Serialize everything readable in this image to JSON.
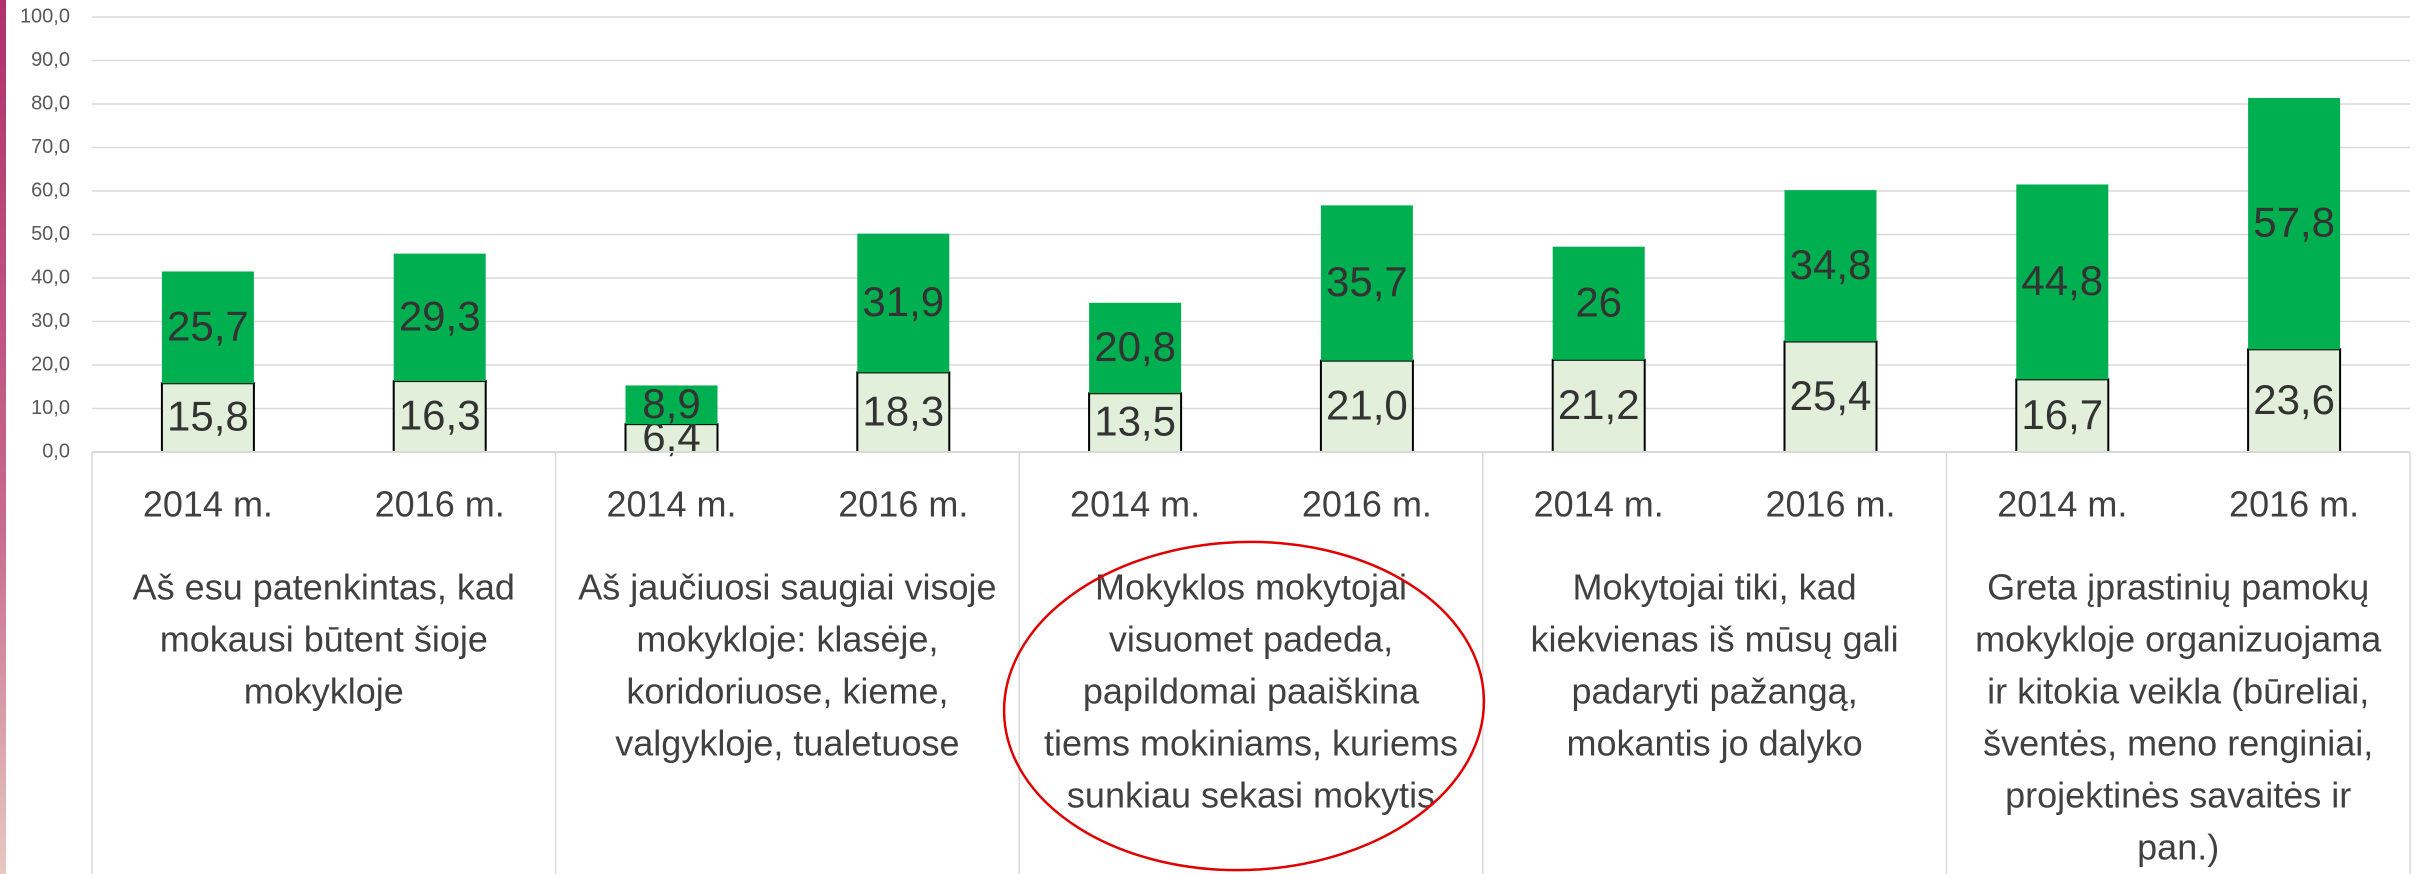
{
  "chart_data": {
    "type": "stacked_bar",
    "categories": [
      "2014 m.",
      "2016 m.",
      "2014 m.",
      "2016 m.",
      "2014 m.",
      "2016 m.",
      "2014 m.",
      "2016 m.",
      "2014 m.",
      "2016 m."
    ],
    "groups": [
      [
        "Aš esu patenkintas, kad",
        "mokausi būtent šioje",
        "mokykloje"
      ],
      [
        "Aš jaučiuosi saugiai visoje",
        "mokykloje: klasėje,",
        "koridoriuose, kieme,",
        "valgykloje, tualetuose"
      ],
      [
        "Mokyklos mokytojai",
        "visuomet padeda,",
        "papildomai paaiškina",
        "tiems mokiniams, kuriems",
        "sunkiau sekasi mokytis"
      ],
      [
        "Mokytojai tiki, kad",
        "kiekvienas iš mūsų gali",
        "padaryti pažangą,",
        "mokantis jo dalyko"
      ],
      [
        "Greta įprastinių pamokų",
        "mokykloje organizuojama",
        "ir kitokia veikla (būreliai,",
        "šventės, meno renginiai,",
        "projektinės savaitės ir",
        "pan.)"
      ]
    ],
    "series": [
      {
        "color": "#e2efda",
        "values": [
          15.8,
          16.3,
          6.4,
          18.3,
          13.5,
          21.0,
          21.2,
          25.4,
          16.7,
          23.6
        ],
        "value_labels": [
          "15,8",
          "16,3",
          "6,4",
          "18,3",
          "13,5",
          "21,0",
          "21,2",
          "25,4",
          "16,7",
          "23,6"
        ]
      },
      {
        "color": "#00b050",
        "values": [
          25.7,
          29.3,
          8.9,
          31.9,
          20.8,
          35.7,
          26,
          34.8,
          44.8,
          57.8
        ],
        "value_labels": [
          "25,7",
          "29,3",
          "8,9",
          "31,9",
          "20,8",
          "35,7",
          "26",
          "34,8",
          "44,8",
          "57,8"
        ]
      }
    ],
    "ylim": [
      0,
      100
    ],
    "yticks": [
      {
        "value": 0,
        "label": "0,0"
      },
      {
        "value": 10,
        "label": "10,0"
      },
      {
        "value": 20,
        "label": "20,0"
      },
      {
        "value": 30,
        "label": "30,0"
      },
      {
        "value": 40,
        "label": "40,0"
      },
      {
        "value": 50,
        "label": "50,0"
      },
      {
        "value": 60,
        "label": "60,0"
      },
      {
        "value": 70,
        "label": "70,0"
      },
      {
        "value": 80,
        "label": "80,0"
      },
      {
        "value": 90,
        "label": "90,0"
      },
      {
        "value": 100,
        "label": "100,0"
      }
    ],
    "grid": true
  }
}
